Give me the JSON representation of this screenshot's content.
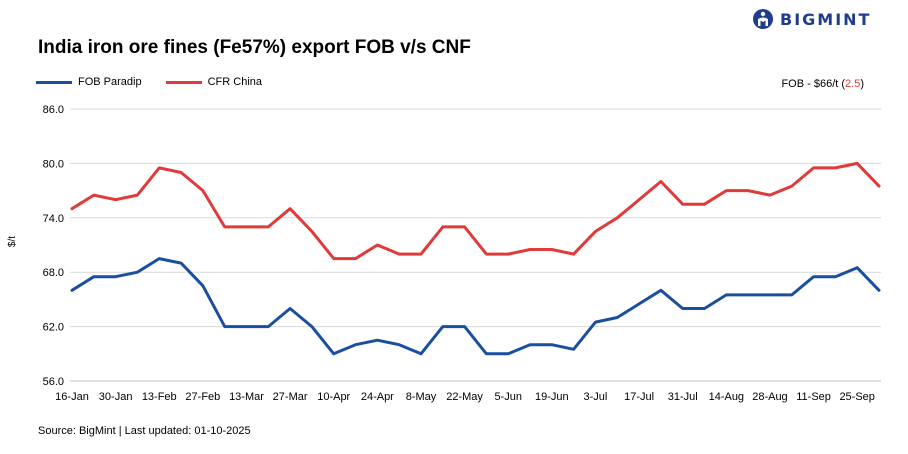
{
  "brand": {
    "name": "BIGMINT",
    "color": "#1f3d8c"
  },
  "colors": {
    "fob": "#1a4fa0",
    "cfr": "#e03a3a",
    "grid": "#d9d9d9"
  },
  "note": {
    "prefix": "FOB - $66/t (",
    "change": "2.5",
    "suffix": ")"
  },
  "source": "Source: BigMint | Last updated: 01-10-2025",
  "chart_data": {
    "type": "line",
    "title": "India iron ore fines (Fe57%) export FOB v/s CNF",
    "ylabel": "$/t",
    "xlabel": "",
    "ylim": [
      56,
      86
    ],
    "yticks": [
      "56.0",
      "62.0",
      "68.0",
      "74.0",
      "80.0",
      "86.0"
    ],
    "ytick_values": [
      56,
      62,
      68,
      74,
      80,
      86
    ],
    "grid": true,
    "legend_position": "top-left",
    "x_tick_labels": [
      "16-Jan",
      "30-Jan",
      "13-Feb",
      "27-Feb",
      "13-Mar",
      "27-Mar",
      "10-Apr",
      "24-Apr",
      "8-May",
      "22-May",
      "5-Jun",
      "19-Jun",
      "3-Jul",
      "17-Jul",
      "31-Jul",
      "14-Aug",
      "28-Aug",
      "11-Sep",
      "25-Sep"
    ],
    "x_tick_every": 2,
    "series": [
      {
        "name": "FOB Paradip",
        "color": "#1a4fa0",
        "values": [
          66,
          67.5,
          67.5,
          68,
          69.5,
          69,
          66.5,
          62,
          62,
          62,
          64,
          62,
          59,
          60,
          60.5,
          60,
          59,
          62,
          62,
          59,
          59,
          60,
          60,
          59.5,
          62.5,
          63,
          64.5,
          66,
          64,
          64,
          65.5,
          65.5,
          65.5,
          65.5,
          67.5,
          67.5,
          68.5,
          66
        ]
      },
      {
        "name": "CFR China",
        "color": "#e03a3a",
        "values": [
          75,
          76.5,
          76,
          76.5,
          79.5,
          79,
          77,
          73,
          73,
          73,
          75,
          72.5,
          69.5,
          69.5,
          71,
          70,
          70,
          73,
          73,
          70,
          70,
          70.5,
          70.5,
          70,
          72.5,
          74,
          76,
          78,
          75.5,
          75.5,
          77,
          77,
          76.5,
          77.5,
          79.5,
          79.5,
          80,
          77.5
        ]
      }
    ]
  }
}
